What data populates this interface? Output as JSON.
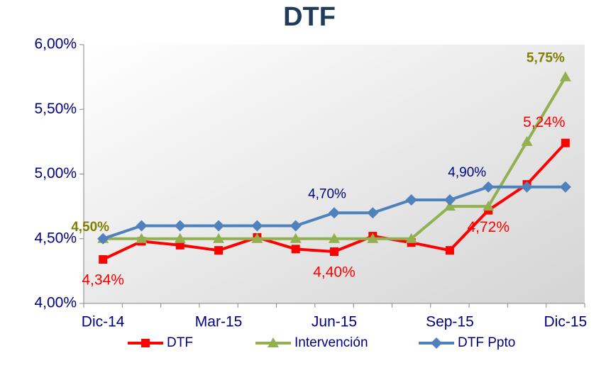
{
  "chart_data": {
    "type": "line",
    "title": "DTF",
    "categories": [
      "Dic-14",
      null,
      null,
      "Mar-15",
      null,
      null,
      "Jun-15",
      null,
      null,
      "Sep-15",
      null,
      null,
      "Dic-15"
    ],
    "series": [
      {
        "name": "DTF",
        "color": "#ff0000",
        "marker": "square",
        "values": [
          4.34,
          4.48,
          4.45,
          4.41,
          4.51,
          4.42,
          4.4,
          4.52,
          4.47,
          4.41,
          4.72,
          4.92,
          5.24
        ],
        "value_labels": [
          "4,34%",
          null,
          null,
          null,
          null,
          null,
          "4,40%",
          null,
          null,
          null,
          "4,72%",
          null,
          "5,24%"
        ]
      },
      {
        "name": "Intervención",
        "color": "#92b050",
        "marker": "triangle",
        "values": [
          4.5,
          4.5,
          4.5,
          4.5,
          4.5,
          4.5,
          4.5,
          4.5,
          4.5,
          4.75,
          4.75,
          5.25,
          5.75
        ],
        "value_labels": [
          "4,50%",
          null,
          null,
          null,
          null,
          null,
          null,
          null,
          null,
          null,
          null,
          null,
          "5,75%"
        ]
      },
      {
        "name": "DTF Ppto",
        "color": "#4f81bd",
        "marker": "diamond",
        "values": [
          4.5,
          4.6,
          4.6,
          4.6,
          4.6,
          4.6,
          4.7,
          4.7,
          4.8,
          4.8,
          4.9,
          4.9,
          4.9
        ],
        "value_labels": [
          null,
          null,
          null,
          null,
          null,
          null,
          "4,70%",
          null,
          null,
          null,
          "4,90%",
          null,
          null
        ]
      }
    ],
    "ylim": [
      4,
      6
    ],
    "yticks": [
      {
        "value": 4,
        "label": "4,00%"
      },
      {
        "value": 4.5,
        "label": "4,50%"
      },
      {
        "value": 5,
        "label": "5,00%"
      },
      {
        "value": 5.5,
        "label": "5,50%"
      },
      {
        "value": 6,
        "label": "6,00%"
      }
    ],
    "legend": "bottom"
  }
}
